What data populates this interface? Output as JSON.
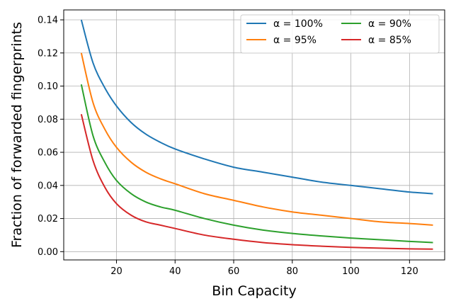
{
  "chart_data": {
    "type": "line",
    "title": "",
    "xlabel": "Bin Capacity",
    "ylabel": "Fraction of forwarded fingerprints",
    "xlim": [
      2,
      132
    ],
    "ylim": [
      -0.005,
      0.146
    ],
    "xticks": [
      20,
      40,
      60,
      80,
      100,
      120
    ],
    "yticks": [
      0.0,
      0.02,
      0.04,
      0.06,
      0.08,
      0.1,
      0.12,
      0.14
    ],
    "ytick_labels": [
      "0.00",
      "0.02",
      "0.04",
      "0.06",
      "0.08",
      "0.10",
      "0.12",
      "0.14"
    ],
    "grid": true,
    "legend": {
      "placement": "top-right",
      "columns": 2
    },
    "x": [
      8,
      12,
      16,
      20,
      25,
      30,
      35,
      40,
      50,
      60,
      70,
      80,
      90,
      100,
      110,
      120,
      128
    ],
    "series": [
      {
        "name": "α = 100%",
        "color": "#1f77b4",
        "values": [
          0.14,
          0.114,
          0.099,
          0.088,
          0.078,
          0.071,
          0.066,
          0.062,
          0.056,
          0.051,
          0.048,
          0.045,
          0.042,
          0.04,
          0.038,
          0.036,
          0.035
        ]
      },
      {
        "name": "α = 95%",
        "color": "#ff7f0e",
        "values": [
          0.12,
          0.09,
          0.074,
          0.063,
          0.054,
          0.048,
          0.044,
          0.041,
          0.035,
          0.031,
          0.027,
          0.024,
          0.022,
          0.02,
          0.018,
          0.017,
          0.016
        ]
      },
      {
        "name": "α = 90%",
        "color": "#2ca02c",
        "values": [
          0.101,
          0.07,
          0.054,
          0.043,
          0.035,
          0.03,
          0.027,
          0.025,
          0.02,
          0.016,
          0.013,
          0.011,
          0.0095,
          0.0082,
          0.0072,
          0.0062,
          0.0055
        ]
      },
      {
        "name": "α = 85%",
        "color": "#d62728",
        "values": [
          0.083,
          0.055,
          0.039,
          0.029,
          0.022,
          0.018,
          0.016,
          0.014,
          0.01,
          0.0075,
          0.0055,
          0.0042,
          0.0033,
          0.0026,
          0.0021,
          0.0017,
          0.0015
        ]
      }
    ]
  }
}
